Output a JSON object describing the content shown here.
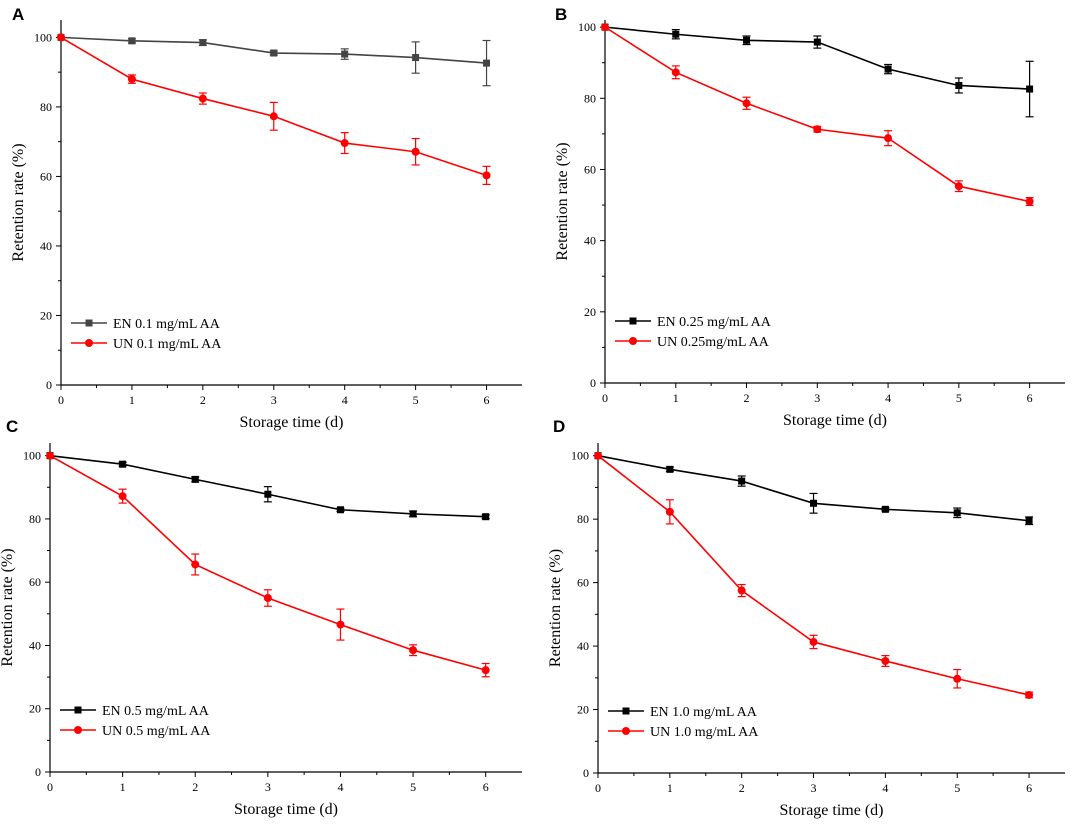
{
  "colors": {
    "en": "#000000",
    "en_panel_a": "#444444",
    "un": "#ff0000",
    "axis": "#000000"
  },
  "chart_data": [
    {
      "type": "line",
      "panel": "A",
      "xlabel": "Storage time (d)",
      "ylabel": "Retention rate (%)",
      "xlim": [
        0,
        6.5
      ],
      "ylim": [
        0,
        105
      ],
      "xticks": [
        0,
        1,
        2,
        3,
        4,
        5,
        6
      ],
      "yticks": [
        0,
        20,
        40,
        60,
        80,
        100
      ],
      "legend_position": "lower-left",
      "x": [
        0,
        1,
        2,
        3,
        4,
        5,
        6
      ],
      "series": [
        {
          "name": "EN 0.1 mg/mL AA",
          "marker": "square",
          "values": [
            100,
            99,
            98.5,
            95.5,
            95.2,
            94.2,
            92.6
          ],
          "errors": [
            0,
            0.6,
            0.8,
            0.6,
            1.5,
            4.5,
            6.5
          ]
        },
        {
          "name": "UN 0.1 mg/mL AA",
          "marker": "circle",
          "values": [
            100,
            88,
            82.4,
            77.3,
            69.6,
            67.1,
            60.3
          ],
          "errors": [
            0,
            1.2,
            1.6,
            4.0,
            3.0,
            3.8,
            2.6
          ]
        }
      ]
    },
    {
      "type": "line",
      "panel": "B",
      "xlabel": "Storage time (d)",
      "ylabel": "Retention rate (%)",
      "xlim": [
        0,
        6.5
      ],
      "ylim": [
        0,
        102
      ],
      "xticks": [
        0,
        1,
        2,
        3,
        4,
        5,
        6
      ],
      "yticks": [
        0,
        20,
        40,
        60,
        80,
        100
      ],
      "legend_position": "lower-left",
      "x": [
        0,
        1,
        2,
        3,
        4,
        5,
        6
      ],
      "series": [
        {
          "name": "EN 0.25 mg/mL AA",
          "marker": "square",
          "values": [
            100,
            98,
            96.3,
            95.8,
            88.2,
            83.6,
            82.6
          ],
          "errors": [
            0,
            1.3,
            1.2,
            1.7,
            1.3,
            2.1,
            7.8
          ]
        },
        {
          "name": "UN 0.25mg/mL AA",
          "marker": "circle",
          "values": [
            100,
            87.3,
            78.6,
            71.3,
            68.8,
            55.3,
            51.0
          ],
          "errors": [
            0,
            1.8,
            1.7,
            0.8,
            2.1,
            1.5,
            1.1
          ]
        }
      ]
    },
    {
      "type": "line",
      "panel": "C",
      "xlabel": "Storage time (d)",
      "ylabel": "Retention rate (%)",
      "xlim": [
        0,
        6.5
      ],
      "ylim": [
        0,
        104
      ],
      "xticks": [
        0,
        1,
        2,
        3,
        4,
        5,
        6
      ],
      "yticks": [
        0,
        20,
        40,
        60,
        80,
        100
      ],
      "legend_position": "lower-left",
      "x": [
        0,
        1,
        2,
        3,
        4,
        5,
        6
      ],
      "series": [
        {
          "name": "EN 0.5 mg/mL AA",
          "marker": "square",
          "values": [
            100,
            97.3,
            92.5,
            87.8,
            82.9,
            81.6,
            80.7
          ],
          "errors": [
            0,
            0.6,
            0.8,
            2.4,
            0.5,
            0.9,
            0.6
          ]
        },
        {
          "name": "UN 0.5 mg/mL AA",
          "marker": "circle",
          "values": [
            100,
            87.2,
            65.6,
            55.0,
            46.6,
            38.5,
            32.2
          ],
          "errors": [
            0,
            2.2,
            3.3,
            2.6,
            4.9,
            1.7,
            2.1
          ]
        }
      ]
    },
    {
      "type": "line",
      "panel": "D",
      "xlabel": "Storage time (d)",
      "ylabel": "Retention rate (%)",
      "xlim": [
        0,
        6.5
      ],
      "ylim": [
        0,
        104
      ],
      "xticks": [
        0,
        1,
        2,
        3,
        4,
        5,
        6
      ],
      "yticks": [
        0,
        20,
        40,
        60,
        80,
        100
      ],
      "legend_position": "lower-left",
      "x": [
        0,
        1,
        2,
        3,
        4,
        5,
        6
      ],
      "series": [
        {
          "name": "EN 1.0 mg/mL AA",
          "marker": "square",
          "values": [
            100,
            95.7,
            92.0,
            85.0,
            83.1,
            82.0,
            79.5
          ],
          "errors": [
            0,
            0.7,
            1.6,
            3.1,
            0.5,
            1.5,
            1.2
          ]
        },
        {
          "name": "UN 1.0 mg/mL AA",
          "marker": "circle",
          "values": [
            100,
            82.3,
            57.5,
            41.3,
            35.3,
            29.7,
            24.6
          ],
          "errors": [
            0,
            3.8,
            1.9,
            2.1,
            1.7,
            2.9,
            0.9
          ]
        }
      ]
    }
  ]
}
